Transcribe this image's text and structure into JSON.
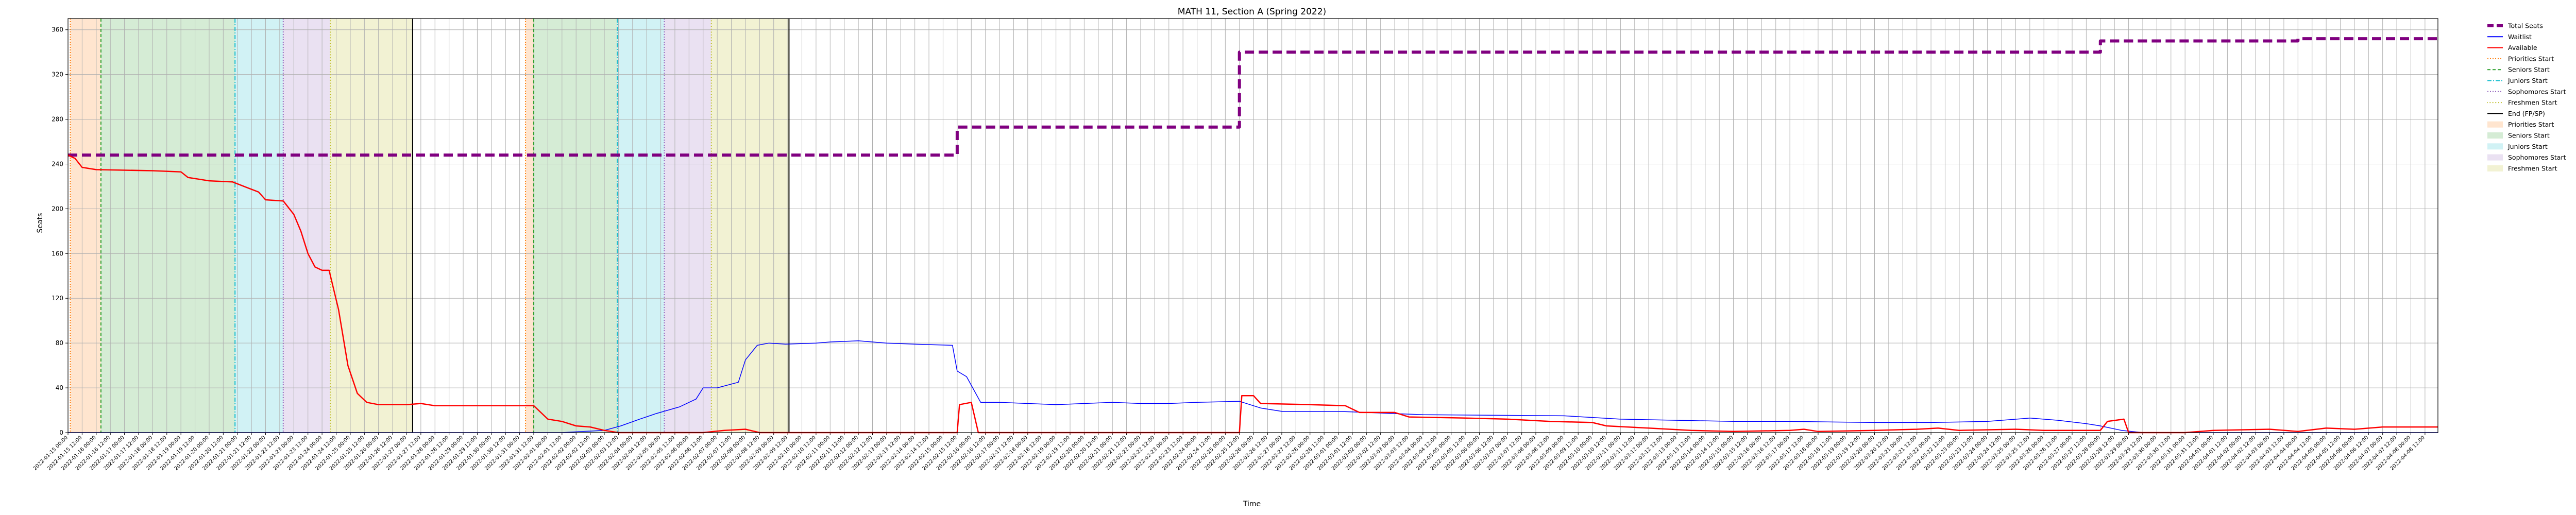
{
  "chart_data": {
    "type": "line",
    "title": "MATH 11, Section A (Spring 2022)",
    "xlabel": "Time",
    "ylabel": "Seats",
    "ylim": [
      0,
      370
    ],
    "yticks": [
      0,
      40,
      80,
      120,
      160,
      200,
      240,
      280,
      320,
      360
    ],
    "x_start": "2022-01-15",
    "x_end": "2022-04-08",
    "grid": true,
    "legend_position": "outside-right",
    "colors": {
      "total": "#800080",
      "waitlist": "#0000ff",
      "available": "#ff0000",
      "priorities": "#ff7f0e",
      "seniors": "#2ca02c",
      "juniors": "#17becf",
      "sophomores": "#9467bd",
      "freshmen": "#bcbd22",
      "end": "#000000"
    },
    "legend": [
      {
        "label": "Total Seats",
        "kind": "line",
        "color": "#800080",
        "dash": "12,6",
        "width": 6
      },
      {
        "label": "Waitlist",
        "kind": "line",
        "color": "#0000ff",
        "dash": "",
        "width": 2
      },
      {
        "label": "Available",
        "kind": "line",
        "color": "#ff0000",
        "dash": "",
        "width": 2
      },
      {
        "label": "Priorities Start",
        "kind": "line",
        "color": "#ff7f0e",
        "dash": "2,3",
        "width": 2
      },
      {
        "label": "Seniors Start",
        "kind": "line",
        "color": "#2ca02c",
        "dash": "6,4",
        "width": 2
      },
      {
        "label": "Juniors Start",
        "kind": "line",
        "color": "#17becf",
        "dash": "8,3,2,3",
        "width": 2
      },
      {
        "label": "Sophomores Start",
        "kind": "line",
        "color": "#9467bd",
        "dash": "2,3",
        "width": 2
      },
      {
        "label": "Freshmen Start",
        "kind": "line",
        "color": "#bcbd22",
        "dash": "1,2",
        "width": 2
      },
      {
        "label": "End (FP/SP)",
        "kind": "line",
        "color": "#000000",
        "dash": "",
        "width": 2
      },
      {
        "label": "Priorities Start",
        "kind": "patch",
        "color": "#ff7f0e"
      },
      {
        "label": "Seniors Start",
        "kind": "patch",
        "color": "#2ca02c"
      },
      {
        "label": "Juniors Start",
        "kind": "patch",
        "color": "#17becf"
      },
      {
        "label": "Sophomores Start",
        "kind": "patch",
        "color": "#9467bd"
      },
      {
        "label": "Freshmen Start",
        "kind": "patch",
        "color": "#bcbd22"
      }
    ],
    "periods": [
      {
        "type": "priorities",
        "start": "2022-01-15T02:00",
        "end": "2022-01-16T04:00"
      },
      {
        "type": "seniors",
        "start": "2022-01-16T04:00",
        "end": "2022-01-20T22:00"
      },
      {
        "type": "juniors",
        "start": "2022-01-20T22:00",
        "end": "2022-01-22T15:00"
      },
      {
        "type": "sophomores",
        "start": "2022-01-22T15:00",
        "end": "2022-01-24T07:00"
      },
      {
        "type": "freshmen",
        "start": "2022-01-24T07:00",
        "end": "2022-01-27T05:00"
      },
      {
        "type": "priorities",
        "start": "2022-01-31T05:00",
        "end": "2022-01-31T12:00"
      },
      {
        "type": "seniors",
        "start": "2022-01-31T12:00",
        "end": "2022-02-03T11:00"
      },
      {
        "type": "juniors",
        "start": "2022-02-03T11:00",
        "end": "2022-02-05T03:00"
      },
      {
        "type": "sophomores",
        "start": "2022-02-05T03:00",
        "end": "2022-02-06T19:00"
      },
      {
        "type": "freshmen",
        "start": "2022-02-06T19:00",
        "end": "2022-02-09T13:00"
      }
    ],
    "series": [
      {
        "name": "Total Seats",
        "step": true,
        "points": [
          [
            "2022-01-15T00:00",
            248
          ],
          [
            "2022-02-15T12:00",
            248
          ],
          [
            "2022-02-15T12:00",
            273
          ],
          [
            "2022-02-25T12:00",
            273
          ],
          [
            "2022-02-25T12:00",
            340
          ],
          [
            "2022-03-28T00:00",
            340
          ],
          [
            "2022-03-28T00:00",
            350
          ],
          [
            "2022-04-04T00:00",
            350
          ],
          [
            "2022-04-04T00:00",
            352
          ],
          [
            "2022-04-08T23:00",
            352
          ]
        ]
      },
      {
        "name": "Waitlist",
        "step": false,
        "points": [
          [
            "2022-01-15T00:00",
            0
          ],
          [
            "2022-02-01T12:00",
            0
          ],
          [
            "2022-02-02T06:00",
            1
          ],
          [
            "2022-02-03T00:00",
            2
          ],
          [
            "2022-02-03T14:00",
            6
          ],
          [
            "2022-02-04T06:00",
            12
          ],
          [
            "2022-02-04T20:00",
            17
          ],
          [
            "2022-02-05T16:00",
            23
          ],
          [
            "2022-02-06T06:00",
            30
          ],
          [
            "2022-02-06T12:00",
            40
          ],
          [
            "2022-02-07T00:00",
            40
          ],
          [
            "2022-02-07T18:00",
            45
          ],
          [
            "2022-02-08T00:00",
            65
          ],
          [
            "2022-02-08T10:00",
            78
          ],
          [
            "2022-02-08T20:00",
            80
          ],
          [
            "2022-02-09T10:00",
            79
          ],
          [
            "2022-02-10T12:00",
            80
          ],
          [
            "2022-02-11T00:00",
            81
          ],
          [
            "2022-02-12T00:00",
            82
          ],
          [
            "2022-02-13T00:00",
            80
          ],
          [
            "2022-02-14T00:00",
            79
          ],
          [
            "2022-02-15T08:00",
            78
          ],
          [
            "2022-02-15T12:00",
            55
          ],
          [
            "2022-02-15T20:00",
            50
          ],
          [
            "2022-02-16T08:00",
            27
          ],
          [
            "2022-02-17T00:00",
            27
          ],
          [
            "2022-02-18T00:00",
            26
          ],
          [
            "2022-02-19T00:00",
            25
          ],
          [
            "2022-02-20T00:00",
            26
          ],
          [
            "2022-02-21T00:00",
            27
          ],
          [
            "2022-02-22T00:00",
            26
          ],
          [
            "2022-02-23T00:00",
            26
          ],
          [
            "2022-02-24T00:00",
            27
          ],
          [
            "2022-02-25T12:00",
            28
          ],
          [
            "2022-02-26T06:00",
            22
          ],
          [
            "2022-02-27T00:00",
            19
          ],
          [
            "2022-03-01T00:00",
            19
          ],
          [
            "2022-03-04T00:00",
            16
          ],
          [
            "2022-03-09T00:00",
            15
          ],
          [
            "2022-03-11T00:00",
            12
          ],
          [
            "2022-03-13T00:00",
            11
          ],
          [
            "2022-03-15T00:00",
            10
          ],
          [
            "2022-03-17T00:00",
            10
          ],
          [
            "2022-03-20T00:00",
            9
          ],
          [
            "2022-03-22T00:00",
            9
          ],
          [
            "2022-03-24T00:00",
            10
          ],
          [
            "2022-03-25T12:00",
            13
          ],
          [
            "2022-03-26T12:00",
            11
          ],
          [
            "2022-03-27T12:00",
            8
          ],
          [
            "2022-03-28T00:00",
            6
          ],
          [
            "2022-03-28T18:00",
            2
          ],
          [
            "2022-03-29T12:00",
            0
          ],
          [
            "2022-04-08T23:00",
            0
          ]
        ]
      },
      {
        "name": "Available",
        "step": false,
        "points": [
          [
            "2022-01-15T00:00",
            248
          ],
          [
            "2022-01-15T06:00",
            245
          ],
          [
            "2022-01-15T12:00",
            237
          ],
          [
            "2022-01-16T00:00",
            235
          ],
          [
            "2022-01-18T00:00",
            234
          ],
          [
            "2022-01-19T00:00",
            233
          ],
          [
            "2022-01-19T06:00",
            228
          ],
          [
            "2022-01-20T00:00",
            225
          ],
          [
            "2022-01-20T20:00",
            224
          ],
          [
            "2022-01-21T08:00",
            219
          ],
          [
            "2022-01-21T18:00",
            215
          ],
          [
            "2022-01-22T00:00",
            208
          ],
          [
            "2022-01-22T15:00",
            207
          ],
          [
            "2022-01-23T00:00",
            195
          ],
          [
            "2022-01-23T06:00",
            180
          ],
          [
            "2022-01-23T12:00",
            160
          ],
          [
            "2022-01-23T18:00",
            148
          ],
          [
            "2022-01-24T00:00",
            145
          ],
          [
            "2022-01-24T06:00",
            145
          ],
          [
            "2022-01-24T14:00",
            110
          ],
          [
            "2022-01-24T22:00",
            60
          ],
          [
            "2022-01-25T06:00",
            35
          ],
          [
            "2022-01-25T14:00",
            27
          ],
          [
            "2022-01-26T00:00",
            25
          ],
          [
            "2022-01-27T00:00",
            25
          ],
          [
            "2022-01-27T12:00",
            26
          ],
          [
            "2022-01-28T00:00",
            24
          ],
          [
            "2022-01-31T12:00",
            24
          ],
          [
            "2022-02-01T00:00",
            12
          ],
          [
            "2022-02-01T12:00",
            10
          ],
          [
            "2022-02-02T00:00",
            6
          ],
          [
            "2022-02-02T12:00",
            5
          ],
          [
            "2022-02-03T00:00",
            2
          ],
          [
            "2022-02-03T12:00",
            0
          ],
          [
            "2022-02-06T12:00",
            0
          ],
          [
            "2022-02-07T06:00",
            2
          ],
          [
            "2022-02-08T00:00",
            3
          ],
          [
            "2022-02-08T12:00",
            0
          ],
          [
            "2022-02-15T12:00",
            0
          ],
          [
            "2022-02-15T14:00",
            25
          ],
          [
            "2022-02-16T00:00",
            27
          ],
          [
            "2022-02-16T06:00",
            0
          ],
          [
            "2022-02-25T12:00",
            0
          ],
          [
            "2022-02-25T14:00",
            33
          ],
          [
            "2022-02-26T00:00",
            33
          ],
          [
            "2022-02-26T06:00",
            26
          ],
          [
            "2022-02-28T00:00",
            25
          ],
          [
            "2022-03-01T06:00",
            24
          ],
          [
            "2022-03-01T18:00",
            18
          ],
          [
            "2022-03-03T00:00",
            18
          ],
          [
            "2022-03-03T12:00",
            14
          ],
          [
            "2022-03-05T12:00",
            13
          ],
          [
            "2022-03-07T00:00",
            12
          ],
          [
            "2022-03-08T12:00",
            10
          ],
          [
            "2022-03-10T00:00",
            9
          ],
          [
            "2022-03-10T12:00",
            6
          ],
          [
            "2022-03-12T00:00",
            4
          ],
          [
            "2022-03-13T12:00",
            2
          ],
          [
            "2022-03-15T00:00",
            1
          ],
          [
            "2022-03-17T00:00",
            2
          ],
          [
            "2022-03-17T12:00",
            3
          ],
          [
            "2022-03-18T00:00",
            1
          ],
          [
            "2022-03-20T00:00",
            2
          ],
          [
            "2022-03-21T12:00",
            3
          ],
          [
            "2022-03-22T06:00",
            4
          ],
          [
            "2022-03-23T00:00",
            2
          ],
          [
            "2022-03-25T00:00",
            3
          ],
          [
            "2022-03-26T00:00",
            2
          ],
          [
            "2022-03-28T00:00",
            2
          ],
          [
            "2022-03-28T06:00",
            10
          ],
          [
            "2022-03-28T20:00",
            12
          ],
          [
            "2022-03-29T00:00",
            0
          ],
          [
            "2022-03-31T00:00",
            0
          ],
          [
            "2022-04-01T00:00",
            2
          ],
          [
            "2022-04-03T00:00",
            3
          ],
          [
            "2022-04-04T00:00",
            1
          ],
          [
            "2022-04-05T00:00",
            4
          ],
          [
            "2022-04-06T00:00",
            3
          ],
          [
            "2022-04-07T00:00",
            5
          ],
          [
            "2022-04-08T23:00",
            5
          ]
        ]
      }
    ]
  }
}
